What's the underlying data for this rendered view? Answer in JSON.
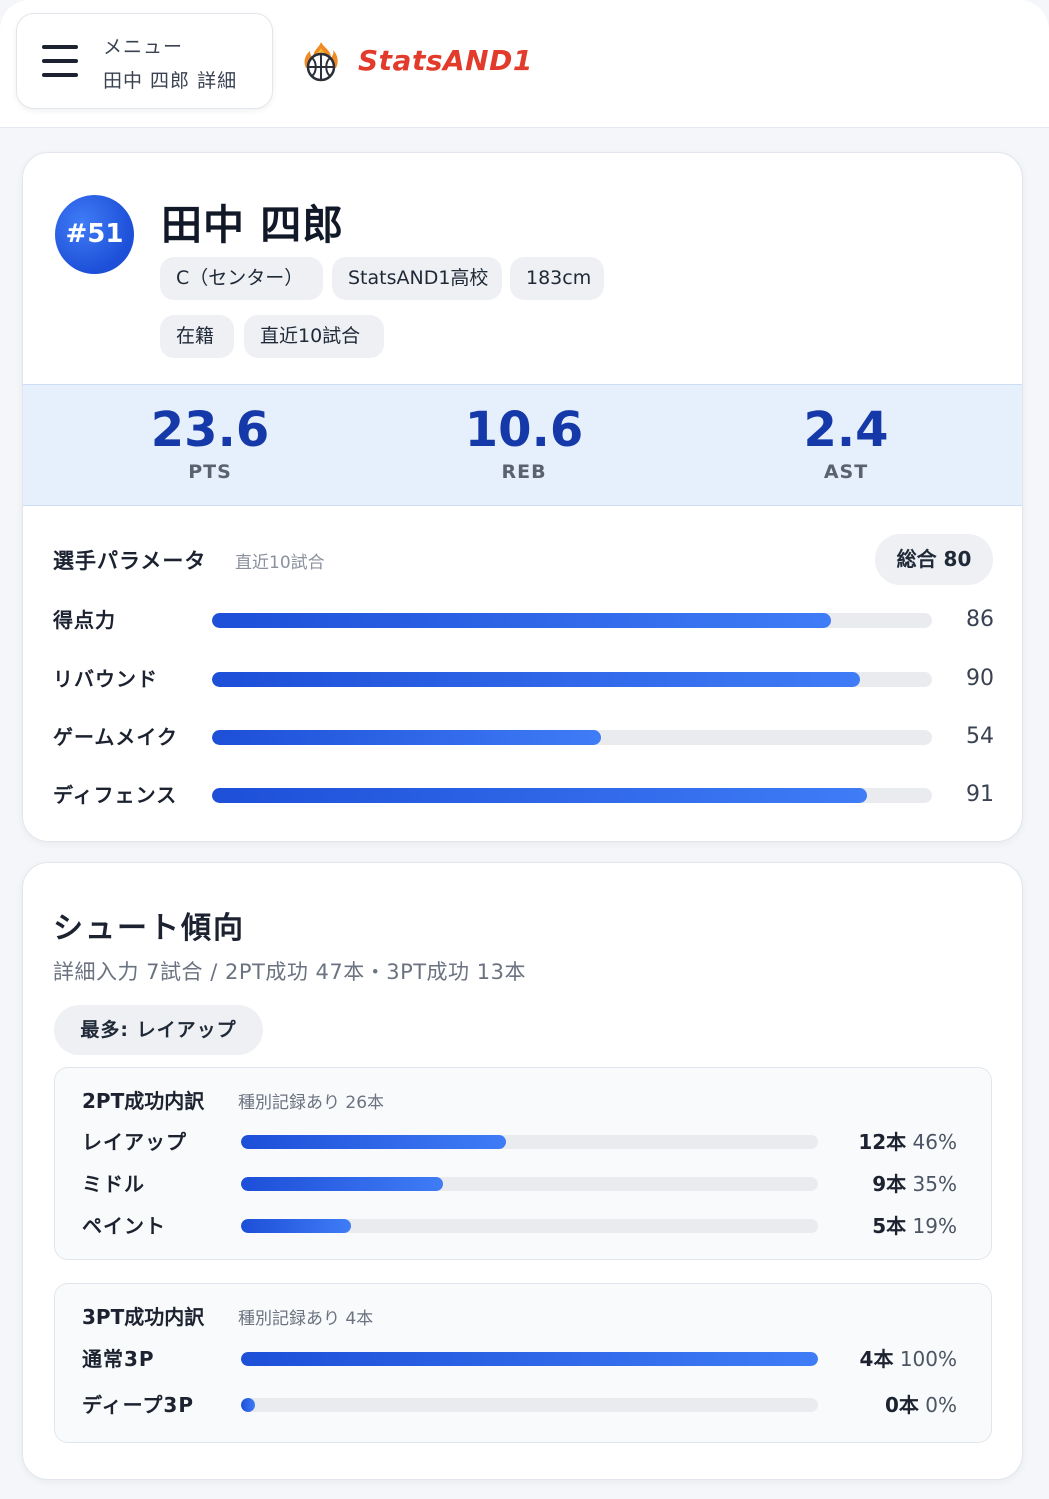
{
  "header": {
    "menu_label": "メニュー",
    "menu_sub": "田中 四郎 詳細",
    "logo_text": "StatsAND1",
    "logo_icon": "basketball-fire-icon"
  },
  "player": {
    "jersey": "#51",
    "name": "田中 四郎",
    "tags": [
      "C（センター）",
      "StatsAND1高校",
      "183cm"
    ],
    "tags2": [
      "在籍",
      "直近10試合"
    ]
  },
  "stats": [
    {
      "value": "23.6",
      "label": "PTS"
    },
    {
      "value": "10.6",
      "label": "REB"
    },
    {
      "value": "2.4",
      "label": "AST"
    }
  ],
  "params": {
    "title": "選手パラメータ",
    "subtitle": "直近10試合",
    "total": "総合 80",
    "items": [
      {
        "label": "得点力",
        "value": 86,
        "display": "86"
      },
      {
        "label": "リバウンド",
        "value": 90,
        "display": "90"
      },
      {
        "label": "ゲームメイク",
        "value": 54,
        "display": "54"
      },
      {
        "label": "ディフェンス",
        "value": 91,
        "display": "91"
      }
    ]
  },
  "shooting": {
    "title": "シュート傾向",
    "subtitle": "詳細入力 7試合 / 2PT成功 47本・3PT成功 13本",
    "most": "最多: レイアップ",
    "two_pt": {
      "title": "2PT成功内訳",
      "subtitle": "種別記録あり 26本",
      "items": [
        {
          "label": "レイアップ",
          "count": "12本",
          "pct": "46%",
          "value": 46
        },
        {
          "label": "ミドル",
          "count": "9本",
          "pct": "35%",
          "value": 35
        },
        {
          "label": "ペイント",
          "count": "5本",
          "pct": "19%",
          "value": 19
        }
      ]
    },
    "three_pt": {
      "title": "3PT成功内訳",
      "subtitle": "種別記録あり 4本",
      "items": [
        {
          "label": "通常3P",
          "count": "4本",
          "pct": "100%",
          "value": 100
        },
        {
          "label": "ディープ3P",
          "count": "0本",
          "pct": "0%",
          "value": 0
        }
      ]
    }
  }
}
